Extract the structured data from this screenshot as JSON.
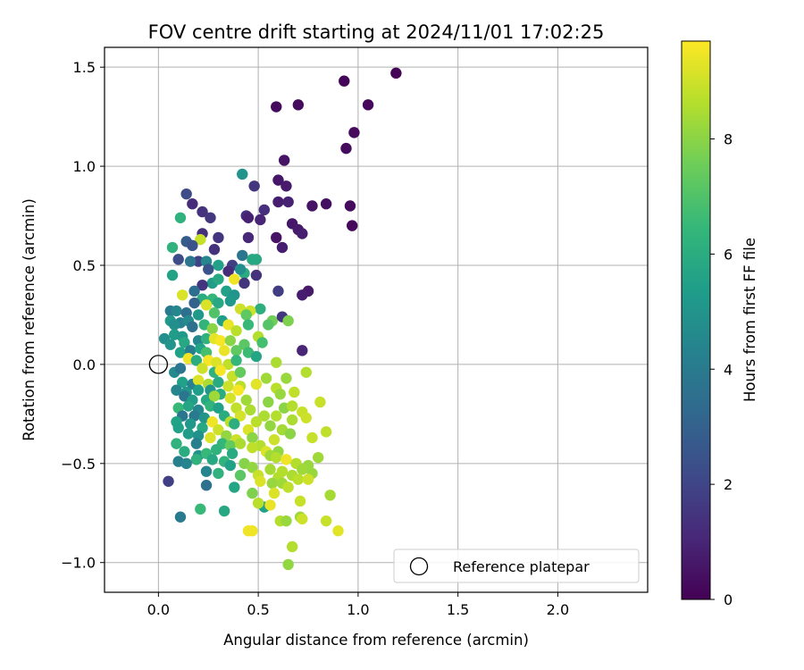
{
  "chart_data": {
    "type": "scatter",
    "title": "FOV centre drift starting at 2024/11/01 17:02:25",
    "xlabel": "Angular distance from reference (arcmin)",
    "ylabel": "Rotation from reference (arcmin)",
    "xlim": [
      -0.27,
      2.45
    ],
    "ylim": [
      -1.15,
      1.6
    ],
    "xticks": [
      0.0,
      0.5,
      1.0,
      1.5,
      2.0
    ],
    "xtick_labels": [
      "0.0",
      "0.5",
      "1.0",
      "1.5",
      "2.0"
    ],
    "yticks": [
      -1.0,
      -0.5,
      0.0,
      0.5,
      1.0,
      1.5
    ],
    "ytick_labels": [
      "−1.0",
      "−0.5",
      "0.0",
      "0.5",
      "1.0",
      "1.5"
    ],
    "grid": true,
    "legend_position": "lower-right",
    "legend": [
      {
        "label": "Reference platepar",
        "marker": "open-circle"
      }
    ],
    "reference_point": {
      "x": 0.0,
      "y": 0.0
    },
    "colorbar": {
      "label": "Hours from first FF file",
      "colormap": "viridis",
      "range": [
        0,
        9.7
      ],
      "ticks": [
        0,
        2,
        4,
        6,
        8
      ],
      "tick_labels": [
        "0",
        "2",
        "4",
        "6",
        "8"
      ]
    },
    "colormap_stops": [
      "#440154",
      "#482878",
      "#3e4a89",
      "#31688e",
      "#26828e",
      "#1f9e89",
      "#35b779",
      "#6dcd59",
      "#b4de2c",
      "#fde725"
    ],
    "points": [
      [
        1.19,
        1.47,
        0.1
      ],
      [
        0.93,
        1.43,
        0.15
      ],
      [
        1.05,
        1.31,
        0.2
      ],
      [
        0.7,
        1.31,
        0.3
      ],
      [
        0.59,
        1.3,
        0.3
      ],
      [
        0.98,
        1.17,
        0.25
      ],
      [
        0.94,
        1.09,
        0.3
      ],
      [
        0.63,
        1.03,
        0.5
      ],
      [
        0.42,
        0.96,
        5.0
      ],
      [
        0.6,
        0.93,
        0.6
      ],
      [
        0.64,
        0.9,
        0.7
      ],
      [
        0.48,
        0.9,
        1.5
      ],
      [
        0.14,
        0.86,
        2.2
      ],
      [
        0.6,
        0.82,
        0.8
      ],
      [
        0.65,
        0.82,
        0.9
      ],
      [
        0.84,
        0.81,
        0.4
      ],
      [
        0.96,
        0.8,
        0.3
      ],
      [
        0.77,
        0.8,
        0.5
      ],
      [
        0.53,
        0.78,
        1.3
      ],
      [
        0.22,
        0.77,
        1.4
      ],
      [
        0.17,
        0.81,
        1.2
      ],
      [
        0.26,
        0.74,
        1.6
      ],
      [
        0.44,
        0.75,
        1.3
      ],
      [
        0.11,
        0.74,
        6.2
      ],
      [
        0.51,
        0.73,
        1.0
      ],
      [
        0.45,
        0.74,
        0.9
      ],
      [
        0.67,
        0.71,
        0.6
      ],
      [
        0.97,
        0.7,
        0.2
      ],
      [
        0.7,
        0.68,
        0.7
      ],
      [
        0.72,
        0.66,
        0.8
      ],
      [
        0.59,
        0.64,
        0.5
      ],
      [
        0.45,
        0.64,
        1.1
      ],
      [
        0.3,
        0.64,
        1.5
      ],
      [
        0.14,
        0.62,
        2.8
      ],
      [
        0.22,
        0.66,
        1.3
      ],
      [
        0.21,
        0.63,
        8.9
      ],
      [
        0.62,
        0.59,
        0.8
      ],
      [
        0.07,
        0.59,
        6.2
      ],
      [
        0.17,
        0.6,
        2.5
      ],
      [
        0.28,
        0.58,
        1.4
      ],
      [
        0.42,
        0.55,
        3.8
      ],
      [
        0.49,
        0.53,
        5.8
      ],
      [
        0.47,
        0.53,
        5.8
      ],
      [
        0.1,
        0.53,
        2.2
      ],
      [
        0.2,
        0.52,
        1.9
      ],
      [
        0.16,
        0.52,
        3.8
      ],
      [
        0.24,
        0.52,
        4.5
      ],
      [
        0.3,
        0.5,
        5.5
      ],
      [
        0.37,
        0.5,
        1.8
      ],
      [
        0.25,
        0.48,
        2.5
      ],
      [
        0.35,
        0.47,
        1.2
      ],
      [
        0.43,
        0.46,
        6.0
      ],
      [
        0.41,
        0.48,
        4.8
      ],
      [
        0.07,
        0.45,
        5.6
      ],
      [
        0.49,
        0.45,
        1.4
      ],
      [
        0.38,
        0.43,
        9.5
      ],
      [
        0.27,
        0.41,
        5.3
      ],
      [
        0.3,
        0.43,
        5.8
      ],
      [
        0.22,
        0.4,
        1.5
      ],
      [
        0.43,
        0.41,
        1.5
      ],
      [
        0.18,
        0.37,
        3.5
      ],
      [
        0.34,
        0.37,
        5.5
      ],
      [
        0.38,
        0.35,
        5.0
      ],
      [
        0.6,
        0.37,
        1.7
      ],
      [
        0.75,
        0.37,
        0.7
      ],
      [
        0.72,
        0.35,
        0.8
      ],
      [
        0.12,
        0.35,
        9.2
      ],
      [
        0.22,
        0.33,
        6.0
      ],
      [
        0.27,
        0.33,
        6.4
      ],
      [
        0.3,
        0.31,
        5.8
      ],
      [
        0.36,
        0.32,
        5.2
      ],
      [
        0.24,
        0.3,
        9.2
      ],
      [
        0.18,
        0.31,
        3.0
      ],
      [
        0.41,
        0.28,
        9.0
      ],
      [
        0.51,
        0.28,
        6.1
      ],
      [
        0.46,
        0.27,
        9.0
      ],
      [
        0.44,
        0.25,
        7.3
      ],
      [
        0.06,
        0.27,
        4.0
      ],
      [
        0.09,
        0.27,
        4.5
      ],
      [
        0.14,
        0.26,
        3.5
      ],
      [
        0.2,
        0.25,
        5.2
      ],
      [
        0.28,
        0.26,
        7.0
      ],
      [
        0.32,
        0.22,
        5.4
      ],
      [
        0.11,
        0.21,
        4.3
      ],
      [
        0.15,
        0.22,
        4.6
      ],
      [
        0.17,
        0.19,
        3.6
      ],
      [
        0.06,
        0.22,
        5.2
      ],
      [
        0.08,
        0.2,
        4.8
      ],
      [
        0.23,
        0.2,
        6.3
      ],
      [
        0.27,
        0.18,
        8.0
      ],
      [
        0.35,
        0.2,
        9.4
      ],
      [
        0.39,
        0.17,
        8.7
      ],
      [
        0.45,
        0.2,
        6.5
      ],
      [
        0.57,
        0.22,
        7.6
      ],
      [
        0.55,
        0.2,
        7.1
      ],
      [
        0.62,
        0.24,
        1.5
      ],
      [
        0.65,
        0.22,
        7.8
      ],
      [
        0.03,
        0.13,
        4.8
      ],
      [
        0.08,
        0.15,
        5.3
      ],
      [
        0.12,
        0.14,
        5.2
      ],
      [
        0.13,
        0.11,
        5.8
      ],
      [
        0.2,
        0.12,
        4.5
      ],
      [
        0.24,
        0.13,
        6.2
      ],
      [
        0.28,
        0.13,
        9.3
      ],
      [
        0.31,
        0.12,
        9.6
      ],
      [
        0.36,
        0.12,
        8.0
      ],
      [
        0.43,
        0.1,
        7.2
      ],
      [
        0.5,
        0.14,
        8.6
      ],
      [
        0.52,
        0.11,
        6.8
      ],
      [
        0.06,
        0.1,
        5.0
      ],
      [
        0.11,
        0.06,
        5.5
      ],
      [
        0.16,
        0.07,
        4.2
      ],
      [
        0.21,
        0.08,
        5.6
      ],
      [
        0.24,
        0.06,
        6.8
      ],
      [
        0.33,
        0.07,
        9.4
      ],
      [
        0.39,
        0.07,
        7.3
      ],
      [
        0.45,
        0.06,
        6.6
      ],
      [
        0.72,
        0.07,
        1.0
      ],
      [
        0.15,
        0.03,
        9.5
      ],
      [
        0.19,
        0.02,
        6.0
      ],
      [
        0.25,
        0.02,
        9.6
      ],
      [
        0.29,
        0.01,
        9.2
      ],
      [
        0.35,
        -0.0,
        8.8
      ],
      [
        0.39,
        0.02,
        6.4
      ],
      [
        0.49,
        0.04,
        5.7
      ],
      [
        0.59,
        0.01,
        8.5
      ],
      [
        0.08,
        -0.04,
        4.6
      ],
      [
        0.11,
        -0.02,
        3.8
      ],
      [
        0.22,
        -0.02,
        9.0
      ],
      [
        0.28,
        -0.04,
        6.2
      ],
      [
        0.31,
        -0.03,
        9.6
      ],
      [
        0.37,
        -0.06,
        8.9
      ],
      [
        0.41,
        -0.04,
        7.4
      ],
      [
        0.74,
        -0.04,
        8.6
      ],
      [
        0.54,
        -0.07,
        8.3
      ],
      [
        0.64,
        -0.07,
        8.2
      ],
      [
        0.12,
        -0.09,
        5.5
      ],
      [
        0.17,
        -0.1,
        4.3
      ],
      [
        0.2,
        -0.08,
        9.2
      ],
      [
        0.25,
        -0.1,
        8.5
      ],
      [
        0.3,
        -0.09,
        5.9
      ],
      [
        0.35,
        -0.11,
        9.0
      ],
      [
        0.41,
        -0.11,
        8.7
      ],
      [
        0.49,
        -0.1,
        9.3
      ],
      [
        0.09,
        -0.13,
        4.5
      ],
      [
        0.14,
        -0.14,
        5.0
      ],
      [
        0.2,
        -0.13,
        5.4
      ],
      [
        0.26,
        -0.13,
        5.1
      ],
      [
        0.31,
        -0.15,
        6.0
      ],
      [
        0.4,
        -0.13,
        9.6
      ],
      [
        0.59,
        -0.12,
        8.7
      ],
      [
        0.61,
        -0.15,
        8.2
      ],
      [
        0.68,
        -0.14,
        8.8
      ],
      [
        0.13,
        -0.16,
        3.8
      ],
      [
        0.17,
        -0.18,
        5.3
      ],
      [
        0.24,
        -0.18,
        5.8
      ],
      [
        0.28,
        -0.16,
        8.3
      ],
      [
        0.36,
        -0.17,
        9.1
      ],
      [
        0.44,
        -0.18,
        8.3
      ],
      [
        0.55,
        -0.19,
        8.0
      ],
      [
        0.81,
        -0.19,
        8.9
      ],
      [
        0.1,
        -0.22,
        6.5
      ],
      [
        0.15,
        -0.21,
        5.7
      ],
      [
        0.2,
        -0.23,
        4.5
      ],
      [
        0.26,
        -0.21,
        6.3
      ],
      [
        0.3,
        -0.22,
        5.5
      ],
      [
        0.39,
        -0.22,
        8.8
      ],
      [
        0.46,
        -0.23,
        8.5
      ],
      [
        0.63,
        -0.22,
        8.0
      ],
      [
        0.67,
        -0.21,
        8.6
      ],
      [
        0.72,
        -0.24,
        8.9
      ],
      [
        0.12,
        -0.26,
        3.8
      ],
      [
        0.18,
        -0.26,
        4.0
      ],
      [
        0.23,
        -0.27,
        5.0
      ],
      [
        0.33,
        -0.26,
        6.0
      ],
      [
        0.41,
        -0.26,
        9.1
      ],
      [
        0.53,
        -0.26,
        8.5
      ],
      [
        0.59,
        -0.26,
        8.6
      ],
      [
        0.74,
        -0.27,
        9.0
      ],
      [
        0.09,
        -0.29,
        5.6
      ],
      [
        0.16,
        -0.3,
        5.2
      ],
      [
        0.27,
        -0.29,
        9.5
      ],
      [
        0.36,
        -0.29,
        8.7
      ],
      [
        0.38,
        -0.3,
        6.1
      ],
      [
        0.49,
        -0.29,
        8.7
      ],
      [
        0.56,
        -0.31,
        8.1
      ],
      [
        0.67,
        -0.28,
        8.5
      ],
      [
        0.1,
        -0.32,
        5.5
      ],
      [
        0.22,
        -0.32,
        5.8
      ],
      [
        0.3,
        -0.33,
        9.0
      ],
      [
        0.45,
        -0.33,
        9.2
      ],
      [
        0.62,
        -0.33,
        8.4
      ],
      [
        0.66,
        -0.35,
        8.0
      ],
      [
        0.84,
        -0.34,
        8.8
      ],
      [
        0.77,
        -0.37,
        8.9
      ],
      [
        0.15,
        -0.35,
        5.3
      ],
      [
        0.2,
        -0.36,
        4.9
      ],
      [
        0.26,
        -0.37,
        9.2
      ],
      [
        0.34,
        -0.36,
        8.1
      ],
      [
        0.39,
        -0.38,
        9.0
      ],
      [
        0.47,
        -0.37,
        8.0
      ],
      [
        0.58,
        -0.38,
        9.0
      ],
      [
        0.09,
        -0.4,
        6.2
      ],
      [
        0.19,
        -0.4,
        4.2
      ],
      [
        0.32,
        -0.4,
        6.4
      ],
      [
        0.36,
        -0.41,
        7.4
      ],
      [
        0.41,
        -0.4,
        8.5
      ],
      [
        0.51,
        -0.41,
        8.6
      ],
      [
        0.29,
        -0.43,
        6.2
      ],
      [
        0.47,
        -0.42,
        8.8
      ],
      [
        0.54,
        -0.44,
        9.2
      ],
      [
        0.6,
        -0.44,
        8.1
      ],
      [
        0.13,
        -0.44,
        6.0
      ],
      [
        0.2,
        -0.46,
        5.0
      ],
      [
        0.24,
        -0.45,
        6.5
      ],
      [
        0.37,
        -0.45,
        5.9
      ],
      [
        0.56,
        -0.46,
        8.3
      ],
      [
        0.59,
        -0.47,
        8.6
      ],
      [
        0.64,
        -0.48,
        9.5
      ],
      [
        0.69,
        -0.5,
        8.6
      ],
      [
        0.75,
        -0.51,
        8.2
      ],
      [
        0.8,
        -0.47,
        8.3
      ],
      [
        0.1,
        -0.49,
        4.2
      ],
      [
        0.19,
        -0.48,
        6.2
      ],
      [
        0.27,
        -0.48,
        5.8
      ],
      [
        0.33,
        -0.49,
        6.3
      ],
      [
        0.43,
        -0.5,
        7.9
      ],
      [
        0.14,
        -0.5,
        4.4
      ],
      [
        0.36,
        -0.51,
        5.5
      ],
      [
        0.47,
        -0.52,
        8.1
      ],
      [
        0.56,
        -0.53,
        8.4
      ],
      [
        0.62,
        -0.54,
        8.6
      ],
      [
        0.67,
        -0.56,
        8.5
      ],
      [
        0.72,
        -0.53,
        8.3
      ],
      [
        0.77,
        -0.55,
        8.2
      ],
      [
        0.24,
        -0.54,
        4.4
      ],
      [
        0.3,
        -0.55,
        6.2
      ],
      [
        0.41,
        -0.56,
        7.2
      ],
      [
        0.5,
        -0.56,
        8.9
      ],
      [
        0.6,
        -0.57,
        8.6
      ],
      [
        0.7,
        -0.58,
        8.7
      ],
      [
        0.75,
        -0.58,
        9.0
      ],
      [
        0.05,
        -0.59,
        1.8
      ],
      [
        0.24,
        -0.61,
        3.6
      ],
      [
        0.38,
        -0.62,
        5.7
      ],
      [
        0.51,
        -0.59,
        9.2
      ],
      [
        0.57,
        -0.6,
        8.2
      ],
      [
        0.62,
        -0.6,
        8.3
      ],
      [
        0.65,
        -0.62,
        8.8
      ],
      [
        0.47,
        -0.65,
        7.8
      ],
      [
        0.58,
        -0.65,
        9.2
      ],
      [
        0.71,
        -0.69,
        8.9
      ],
      [
        0.86,
        -0.66,
        8.4
      ],
      [
        0.53,
        -0.72,
        5.5
      ],
      [
        0.56,
        -0.71,
        9.4
      ],
      [
        0.5,
        -0.7,
        8.7
      ],
      [
        0.21,
        -0.73,
        6.5
      ],
      [
        0.33,
        -0.74,
        5.8
      ],
      [
        0.71,
        -0.77,
        8.3
      ],
      [
        0.11,
        -0.77,
        4.0
      ],
      [
        0.61,
        -0.79,
        8.6
      ],
      [
        0.64,
        -0.79,
        8.2
      ],
      [
        0.72,
        -0.78,
        9.0
      ],
      [
        0.84,
        -0.79,
        8.9
      ],
      [
        0.45,
        -0.84,
        9.5
      ],
      [
        0.47,
        -0.84,
        9.5
      ],
      [
        0.9,
        -0.84,
        9.3
      ],
      [
        0.67,
        -0.92,
        8.6
      ],
      [
        0.65,
        -1.01,
        8.1
      ]
    ]
  }
}
